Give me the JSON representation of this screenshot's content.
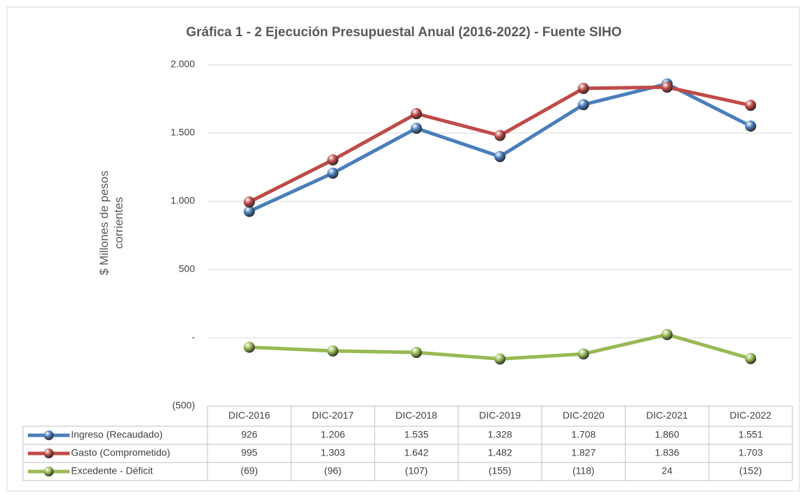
{
  "chart_data": {
    "type": "line",
    "title": "Gráfica 1 - 2  Ejecución Presupuestal Anual (2016-2022) - Fuente SIHO",
    "y_label": "$ Millones de pesos corrientes",
    "categories": [
      "DIC-2016",
      "DIC-2017",
      "DIC-2018",
      "DIC-2019",
      "DIC-2020",
      "DIC-2021",
      "DIC-2022"
    ],
    "series": [
      {
        "name": "Ingreso (Recaudado)",
        "color": "#4a7ebb",
        "values": [
          926,
          1206,
          1535,
          1328,
          1708,
          1860,
          1551
        ],
        "value_labels": [
          "926",
          "1.206",
          "1.535",
          "1.328",
          "1.708",
          "1.860",
          "1.551"
        ]
      },
      {
        "name": "Gasto (Comprometido)",
        "color": "#be4b48",
        "values": [
          995,
          1303,
          1642,
          1482,
          1827,
          1836,
          1703
        ],
        "value_labels": [
          "995",
          "1.303",
          "1.642",
          "1.482",
          "1.827",
          "1.836",
          "1.703"
        ]
      },
      {
        "name": "Excedente - Déficit",
        "color": "#98b954",
        "values": [
          -69,
          -96,
          -107,
          -155,
          -118,
          24,
          -152
        ],
        "value_labels": [
          "(69)",
          "(96)",
          "(107)",
          "(155)",
          "(118)",
          "24",
          "(152)"
        ]
      }
    ],
    "ylim": [
      -500,
      2000
    ],
    "yticks": [
      {
        "value": -500,
        "label": "(500)"
      },
      {
        "value": 0,
        "label": "-"
      },
      500,
      {
        "value": 1000,
        "label": "1.000"
      },
      {
        "value": 1500,
        "label": "1.500"
      },
      {
        "value": 2000,
        "label": "2.000"
      }
    ],
    "grid": true
  }
}
